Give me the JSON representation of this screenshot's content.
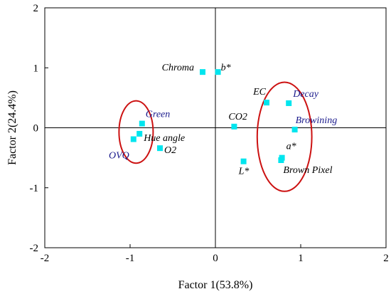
{
  "chart_data": {
    "type": "scatter",
    "title": "",
    "xlabel": "Factor 1(53.8%)",
    "ylabel": "Factor 2(24.4%)",
    "xlim": [
      -2,
      2
    ],
    "ylim": [
      -2,
      2
    ],
    "xticks": [
      -2,
      -1,
      0,
      1,
      2
    ],
    "yticks": [
      -2,
      -1,
      0,
      1,
      2
    ],
    "grid": false,
    "reference_lines": {
      "x": 0,
      "y": 0
    },
    "marker_color": "#00e5ee",
    "ellipse_color": "#cc1111",
    "points": [
      {
        "name": "Chroma",
        "x": -0.15,
        "y": 0.93,
        "label_color": "#000000"
      },
      {
        "name": "b*",
        "x": 0.03,
        "y": 0.93,
        "label_color": "#000000"
      },
      {
        "name": "EC",
        "x": 0.6,
        "y": 0.42,
        "label_color": "#000000"
      },
      {
        "name": "Decay",
        "x": 0.86,
        "y": 0.41,
        "label_color": "#1a1a8c"
      },
      {
        "name": "Browining",
        "x": 0.93,
        "y": -0.03,
        "label_color": "#1a1a8c"
      },
      {
        "name": "CO2",
        "x": 0.22,
        "y": 0.02,
        "label_color": "#000000"
      },
      {
        "name": "a*",
        "x": 0.78,
        "y": -0.5,
        "label_color": "#000000"
      },
      {
        "name": "Brown Pixel",
        "x": 0.77,
        "y": -0.54,
        "label_color": "#000000"
      },
      {
        "name": "L*",
        "x": 0.33,
        "y": -0.56,
        "label_color": "#000000"
      },
      {
        "name": "Green",
        "x": -0.86,
        "y": 0.07,
        "label_color": "#1a1a8c"
      },
      {
        "name": "Hue angle",
        "x": -0.89,
        "y": -0.1,
        "label_color": "#000000"
      },
      {
        "name": "OVQ",
        "x": -0.96,
        "y": -0.19,
        "label_color": "#1a1a8c"
      },
      {
        "name": "O2",
        "x": -0.65,
        "y": -0.34,
        "label_color": "#000000"
      }
    ],
    "ellipses": [
      {
        "cx": -0.93,
        "cy": -0.07,
        "rx": 0.2,
        "ry": 0.52
      },
      {
        "cx": 0.81,
        "cy": -0.15,
        "rx": 0.32,
        "ry": 0.91
      }
    ]
  }
}
